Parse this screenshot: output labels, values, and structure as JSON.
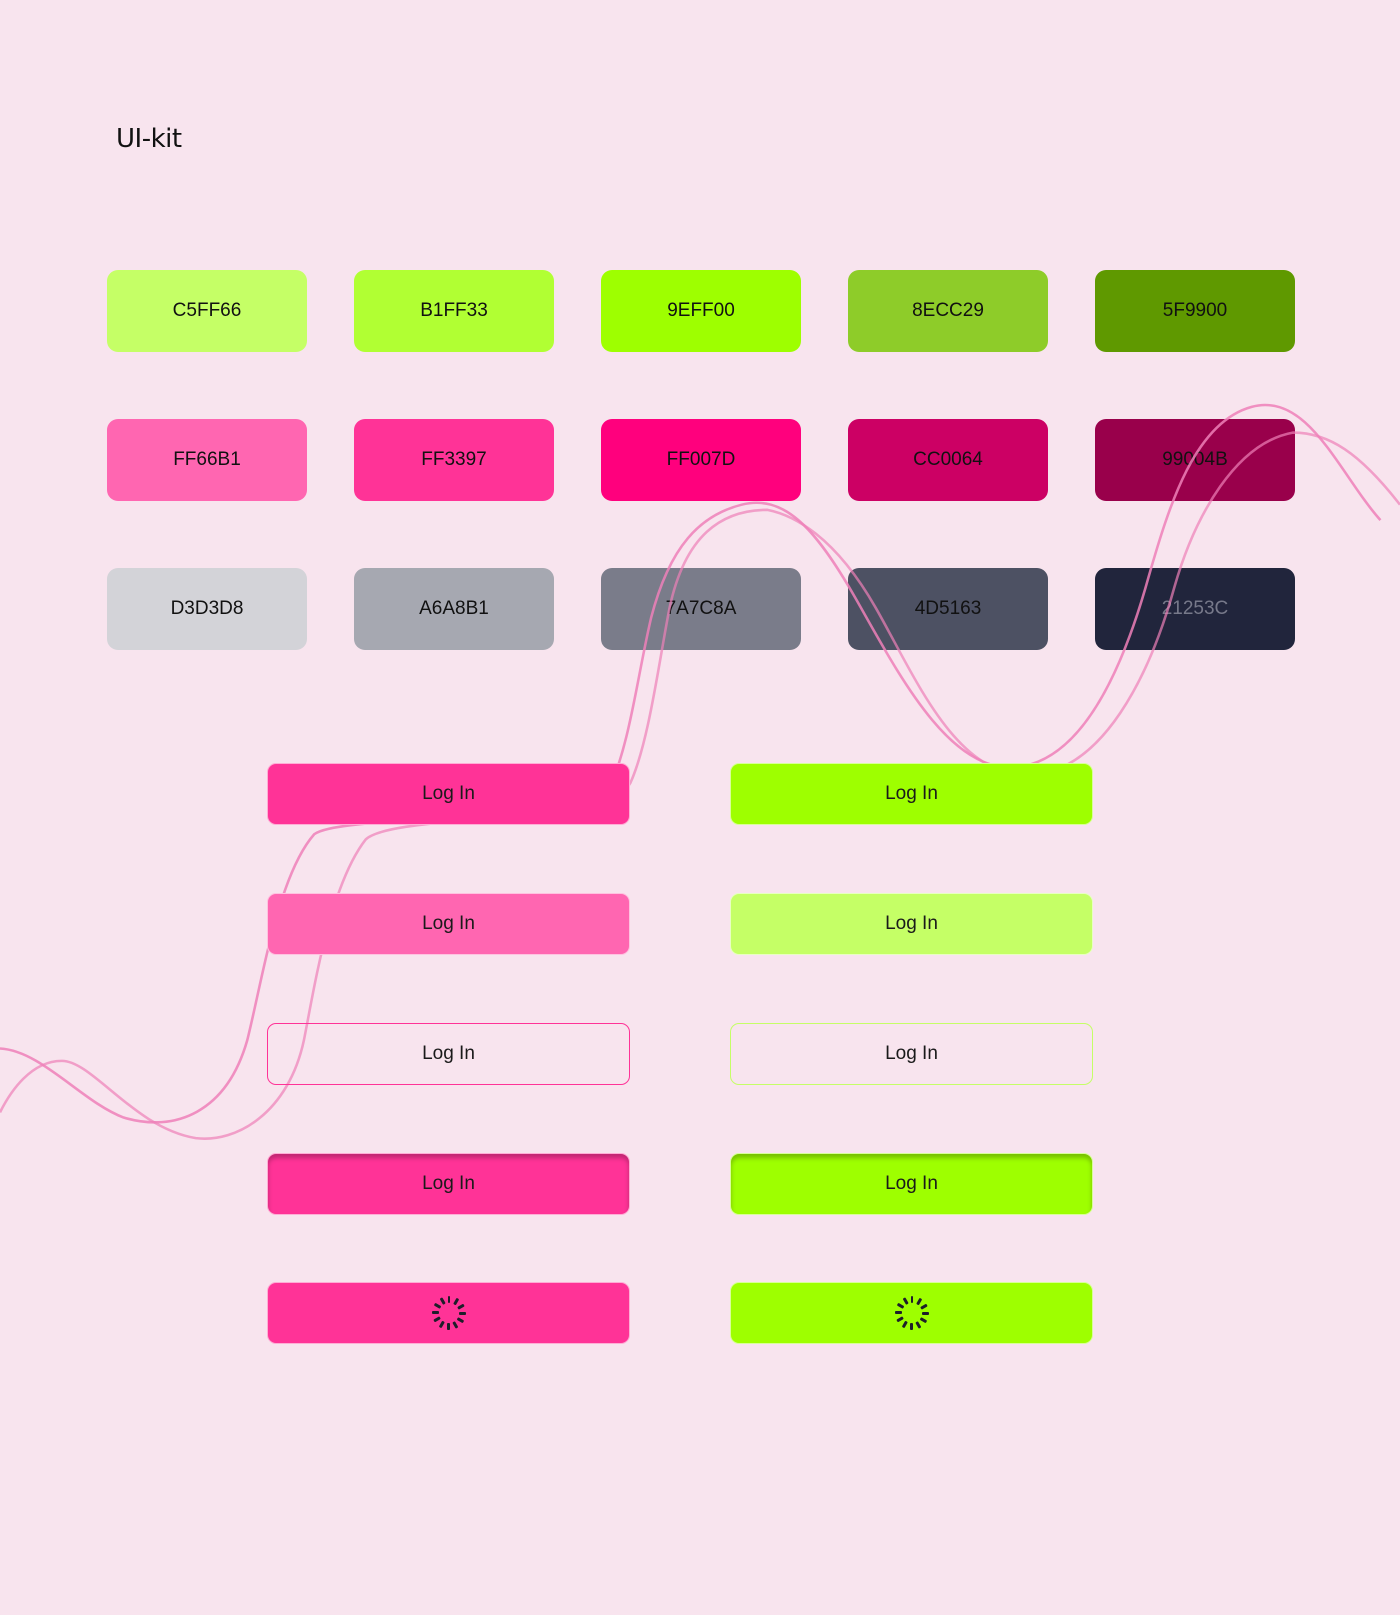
{
  "title": "UI-kit",
  "swatches": [
    [
      {
        "label": "C5FF66",
        "color": "#C5FF66",
        "text": "#111111"
      },
      {
        "label": "B1FF33",
        "color": "#B1FF33",
        "text": "#111111"
      },
      {
        "label": "9EFF00",
        "color": "#9EFF00",
        "text": "#111111"
      },
      {
        "label": "8ECC29",
        "color": "#8ECC29",
        "text": "#111111"
      },
      {
        "label": "5F9900",
        "color": "#5F9900",
        "text": "#111111"
      }
    ],
    [
      {
        "label": "FF66B1",
        "color": "#FF66B1",
        "text": "#111111"
      },
      {
        "label": "FF3397",
        "color": "#FF3397",
        "text": "#111111"
      },
      {
        "label": "FF007D",
        "color": "#FF007D",
        "text": "#111111"
      },
      {
        "label": "CC0064",
        "color": "#CC0064",
        "text": "#111111"
      },
      {
        "label": "99004B",
        "color": "#99004B",
        "text": "#111111"
      }
    ],
    [
      {
        "label": "D3D3D8",
        "color": "#D3D3D8",
        "text": "#111111"
      },
      {
        "label": "A6A8B1",
        "color": "#A6A8B1",
        "text": "#111111"
      },
      {
        "label": "7A7C8A",
        "color": "#7A7C8A",
        "text": "#111111"
      },
      {
        "label": "4D5163",
        "color": "#4D5163",
        "text": "#111111"
      },
      {
        "label": "21253C",
        "color": "#21253C",
        "text": "#77798a"
      }
    ]
  ],
  "buttons": {
    "pink": [
      {
        "state": "default",
        "label": "Log In",
        "bg": "#FF3397"
      },
      {
        "state": "hover",
        "label": "Log In",
        "bg": "#FF66B1"
      },
      {
        "state": "outline",
        "label": "Log In",
        "border": "#FF3397"
      },
      {
        "state": "pressed",
        "label": "Log In",
        "bg": "#FF3397"
      },
      {
        "state": "loading",
        "icon": "spinner-icon",
        "bg": "#FF3397"
      }
    ],
    "green": [
      {
        "state": "default",
        "label": "Log In",
        "bg": "#9EFF00"
      },
      {
        "state": "hover",
        "label": "Log In",
        "bg": "#C5FF66"
      },
      {
        "state": "outline",
        "label": "Log In",
        "border": "#C5FF66"
      },
      {
        "state": "pressed",
        "label": "Log In",
        "bg": "#9EFF00"
      },
      {
        "state": "loading",
        "icon": "spinner-icon",
        "bg": "#9EFF00"
      }
    ]
  },
  "colors": {
    "background": "#f8e4ee",
    "curve": "#ee80b8"
  }
}
